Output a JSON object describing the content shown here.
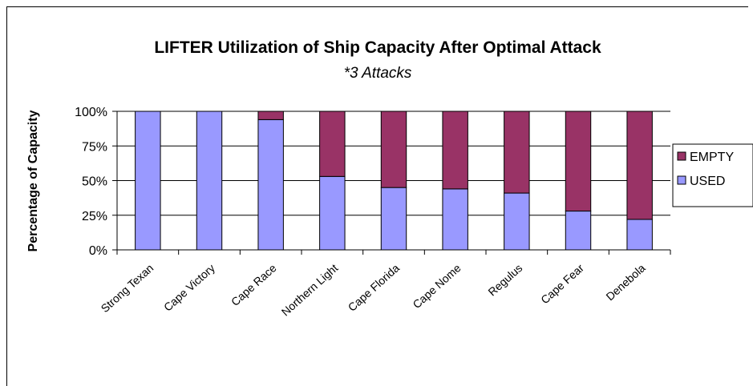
{
  "chart_data": {
    "type": "bar",
    "stacked": true,
    "title": "LIFTER Utilization of Ship Capacity After Optimal Attack",
    "subtitle": "*3 Attacks",
    "xlabel": "",
    "ylabel": "Percentage of Capacity",
    "ylim": [
      0,
      100
    ],
    "yticks": [
      "0%",
      "25%",
      "50%",
      "75%",
      "100%"
    ],
    "ytick_values": [
      0,
      25,
      50,
      75,
      100
    ],
    "grid": true,
    "legend_position": "right",
    "categories": [
      "Strong Texan",
      "Cape Victory",
      "Cape Race",
      "Northern Light",
      "Cape Florida",
      "Cape Nome",
      "Regulus",
      "Cape Fear",
      "Denebola"
    ],
    "series": [
      {
        "name": "USED",
        "color": "#9999ff",
        "values": [
          100,
          100,
          94,
          53,
          45,
          44,
          41,
          28,
          22
        ]
      },
      {
        "name": "EMPTY",
        "color": "#993366",
        "values": [
          0,
          0,
          6,
          47,
          55,
          56,
          59,
          72,
          78
        ]
      }
    ],
    "legend": [
      "EMPTY",
      "USED"
    ]
  }
}
